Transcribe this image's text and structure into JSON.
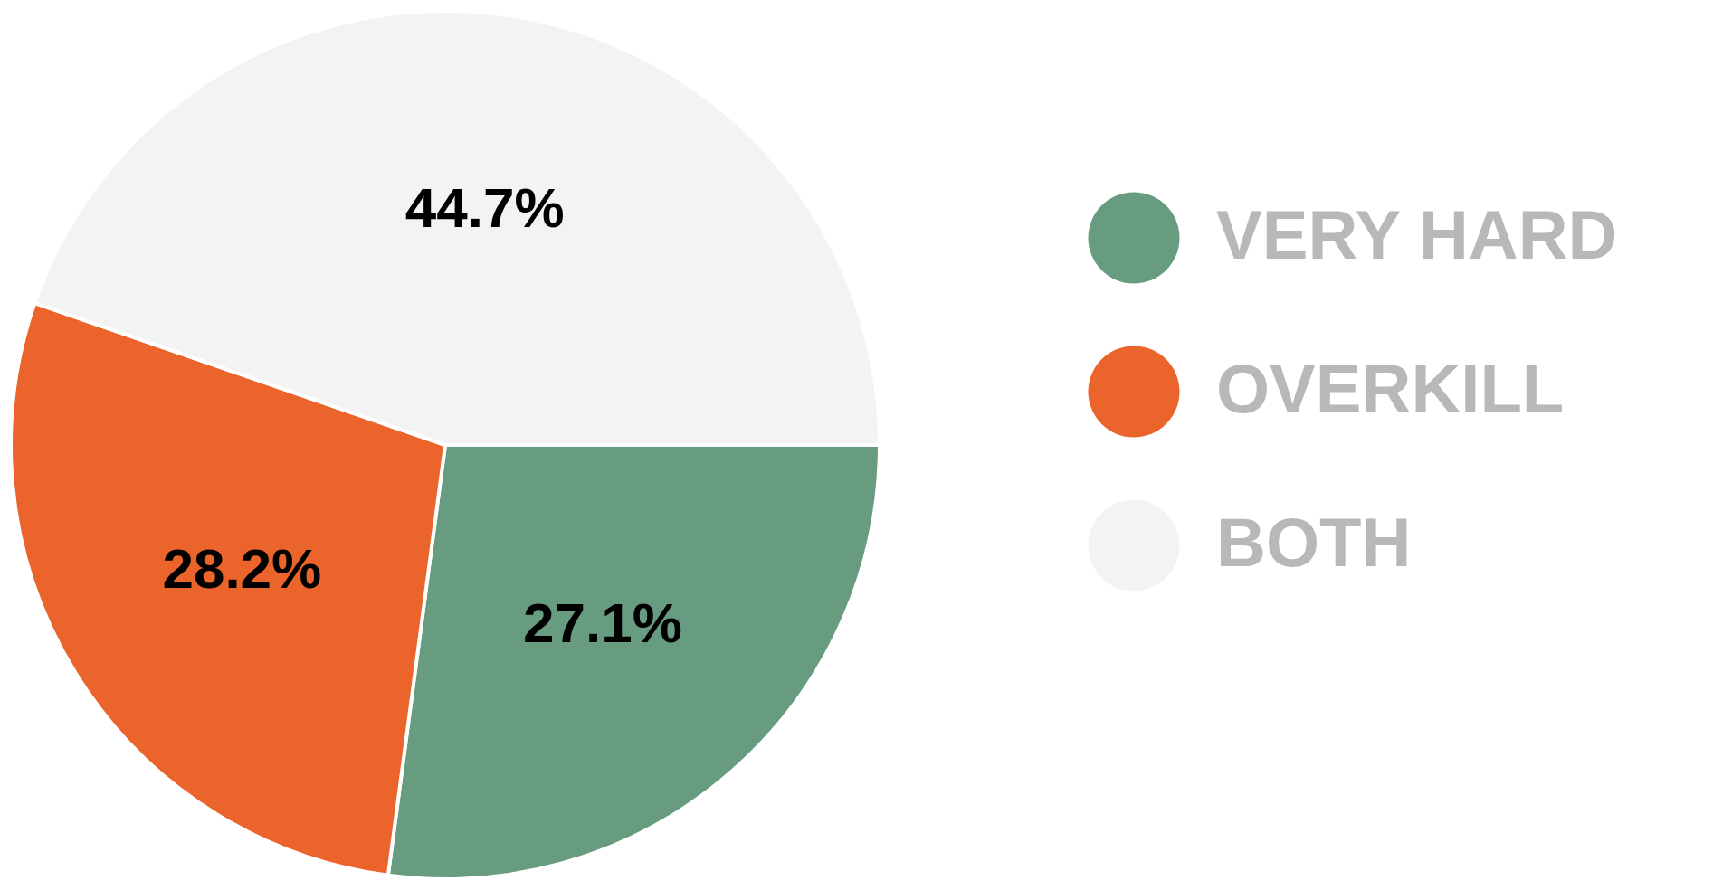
{
  "chart_data": {
    "type": "pie",
    "categories": [
      "VERY HARD",
      "OVERKILL",
      "BOTH"
    ],
    "values": [
      27.1,
      28.2,
      44.7
    ],
    "colors": [
      "#679c80",
      "#eb642b",
      "#f3f3f3"
    ],
    "value_labels": [
      "27.1%",
      "28.2%",
      "44.7%"
    ],
    "legend": "right"
  }
}
